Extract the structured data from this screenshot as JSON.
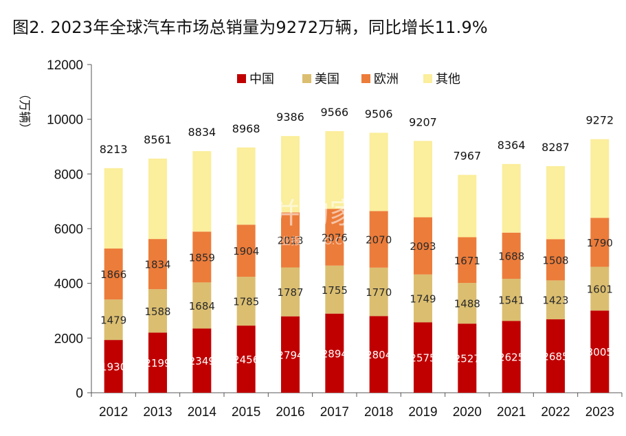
{
  "title": "图2. 2023年全球汽车市场总销量为9272万辆，同比增长11.9%",
  "watermark": {
    "main": "并购家",
    "sub": "行业报告 IPO.COM"
  },
  "chart_data": {
    "type": "bar",
    "stacked": true,
    "ylabel": "（万辆）",
    "ylim": [
      0,
      12000
    ],
    "yticks": [
      0,
      2000,
      4000,
      6000,
      8000,
      10000,
      12000
    ],
    "grid": false,
    "legend_position": "top",
    "categories": [
      "2012",
      "2013",
      "2014",
      "2015",
      "2016",
      "2017",
      "2018",
      "2019",
      "2020",
      "2021",
      "2022",
      "2023"
    ],
    "series": [
      {
        "name": "中国",
        "color": "#c00000",
        "values": [
          1930,
          2199,
          2349,
          2456,
          2794,
          2894,
          2804,
          2575,
          2527,
          2625,
          2685,
          3005
        ]
      },
      {
        "name": "美国",
        "color": "#dbbe70",
        "values": [
          1479,
          1588,
          1684,
          1785,
          1787,
          1755,
          1770,
          1749,
          1488,
          1541,
          1423,
          1601
        ]
      },
      {
        "name": "欧洲",
        "color": "#ec7c3a",
        "values": [
          1866,
          1834,
          1859,
          1904,
          2013,
          2076,
          2070,
          2093,
          1671,
          1688,
          1508,
          1790
        ]
      },
      {
        "name": "其他",
        "color": "#fbee9c",
        "values": [
          2938,
          2940,
          2942,
          2823,
          2792,
          2841,
          2862,
          2790,
          2281,
          2510,
          2671,
          2876
        ]
      }
    ],
    "totals": [
      8213,
      8561,
      8834,
      8968,
      9386,
      9566,
      9506,
      9207,
      7967,
      8364,
      8287,
      9272
    ],
    "value_labels_series": [
      "中国",
      "美国",
      "欧洲"
    ]
  }
}
